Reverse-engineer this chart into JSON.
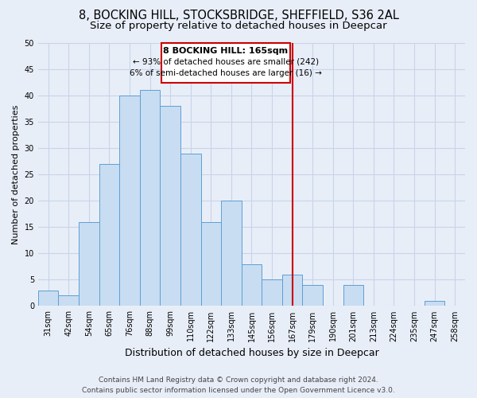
{
  "title": "8, BOCKING HILL, STOCKSBRIDGE, SHEFFIELD, S36 2AL",
  "subtitle": "Size of property relative to detached houses in Deepcar",
  "xlabel": "Distribution of detached houses by size in Deepcar",
  "ylabel": "Number of detached properties",
  "bin_labels": [
    "31sqm",
    "42sqm",
    "54sqm",
    "65sqm",
    "76sqm",
    "88sqm",
    "99sqm",
    "110sqm",
    "122sqm",
    "133sqm",
    "145sqm",
    "156sqm",
    "167sqm",
    "179sqm",
    "190sqm",
    "201sqm",
    "213sqm",
    "224sqm",
    "235sqm",
    "247sqm",
    "258sqm"
  ],
  "bar_values": [
    3,
    2,
    16,
    27,
    40,
    41,
    38,
    29,
    16,
    20,
    8,
    5,
    6,
    4,
    0,
    4,
    0,
    0,
    0,
    1,
    0
  ],
  "bar_color": "#c8ddf2",
  "bar_edge_color": "#5e9fd4",
  "grid_color": "#c8d4e8",
  "background_color": "#e8eef8",
  "vline_x_index": 12,
  "vline_color": "#cc0000",
  "annotation_title": "8 BOCKING HILL: 165sqm",
  "annotation_line1": "← 93% of detached houses are smaller (242)",
  "annotation_line2": "6% of semi-detached houses are larger (16) →",
  "annotation_box_color": "#ffffff",
  "annotation_border_color": "#cc0000",
  "ylim": [
    0,
    50
  ],
  "yticks": [
    0,
    5,
    10,
    15,
    20,
    25,
    30,
    35,
    40,
    45,
    50
  ],
  "footer_line1": "Contains HM Land Registry data © Crown copyright and database right 2024.",
  "footer_line2": "Contains public sector information licensed under the Open Government Licence v3.0.",
  "title_fontsize": 10.5,
  "subtitle_fontsize": 9.5,
  "xlabel_fontsize": 9,
  "ylabel_fontsize": 8,
  "tick_fontsize": 7,
  "footer_fontsize": 6.5,
  "ann_title_fontsize": 8,
  "ann_text_fontsize": 7.5
}
